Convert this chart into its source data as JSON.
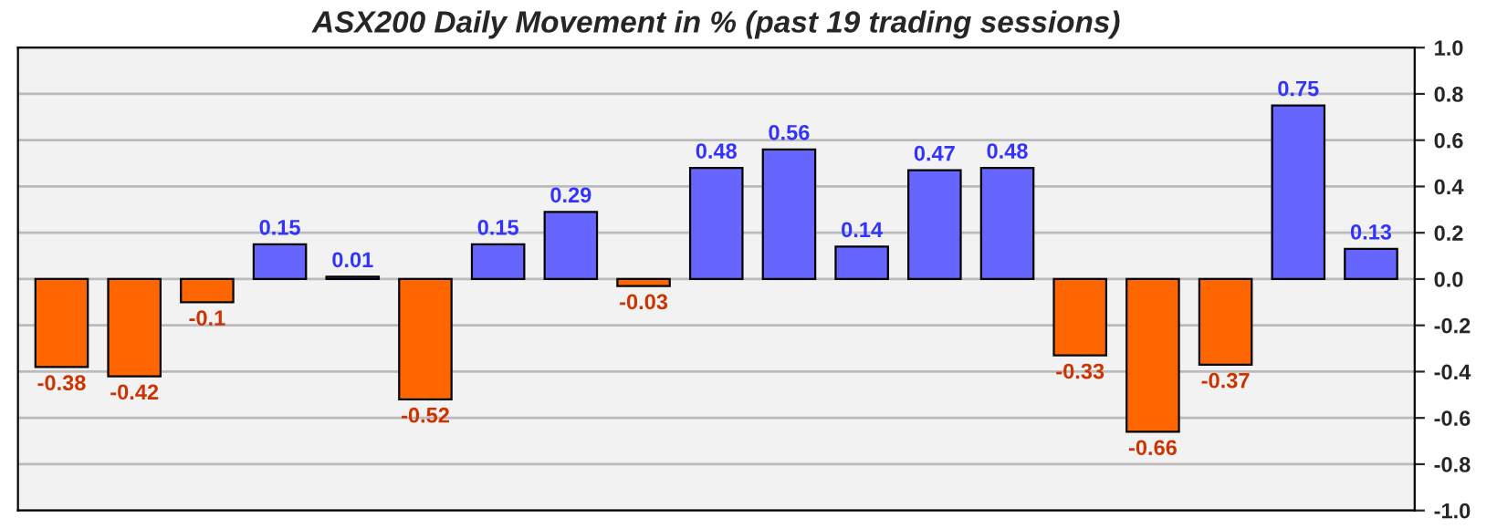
{
  "chart_data": {
    "type": "bar",
    "title": "ASX200 Daily Movement in % (past 19 trading sessions)",
    "categories": [
      null,
      null,
      null,
      null,
      null,
      null,
      null,
      null,
      null,
      null,
      null,
      null,
      null,
      null,
      null,
      null,
      null,
      null,
      null
    ],
    "values": [
      -0.38,
      -0.42,
      -0.1,
      0.15,
      0.01,
      -0.52,
      0.15,
      0.29,
      -0.03,
      0.48,
      0.56,
      0.14,
      0.47,
      0.48,
      -0.33,
      -0.66,
      -0.37,
      0.75,
      0.13
    ],
    "colors": [
      "#ff6600",
      "#ff6600",
      "#ff6600",
      "#6666ff",
      "#6666ff",
      "#ff6600",
      "#6666ff",
      "#6666ff",
      "#ff6600",
      "#6666ff",
      "#6666ff",
      "#6666ff",
      "#6666ff",
      "#6666ff",
      "#ff6600",
      "#ff6600",
      "#ff6600",
      "#6666ff",
      "#6666ff"
    ],
    "ylim": [
      -1.0,
      1.0
    ],
    "yticks": [
      {
        "value": -1.0,
        "label": "-1.0"
      },
      {
        "value": -0.8,
        "label": "-0.8"
      },
      {
        "value": -0.6,
        "label": "-0.6"
      },
      {
        "value": -0.4,
        "label": "-0.4"
      },
      {
        "value": -0.2,
        "label": "-0.2"
      },
      {
        "value": 0,
        "label": "0.0"
      },
      {
        "value": 0.2,
        "label": "0.2"
      },
      {
        "value": 0.4,
        "label": "0.4"
      },
      {
        "value": 0.6,
        "label": "0.6"
      },
      {
        "value": 0.8,
        "label": "0.8"
      },
      {
        "value": 1.0,
        "label": "1.0"
      }
    ],
    "data_labels": true,
    "grid": "y"
  }
}
